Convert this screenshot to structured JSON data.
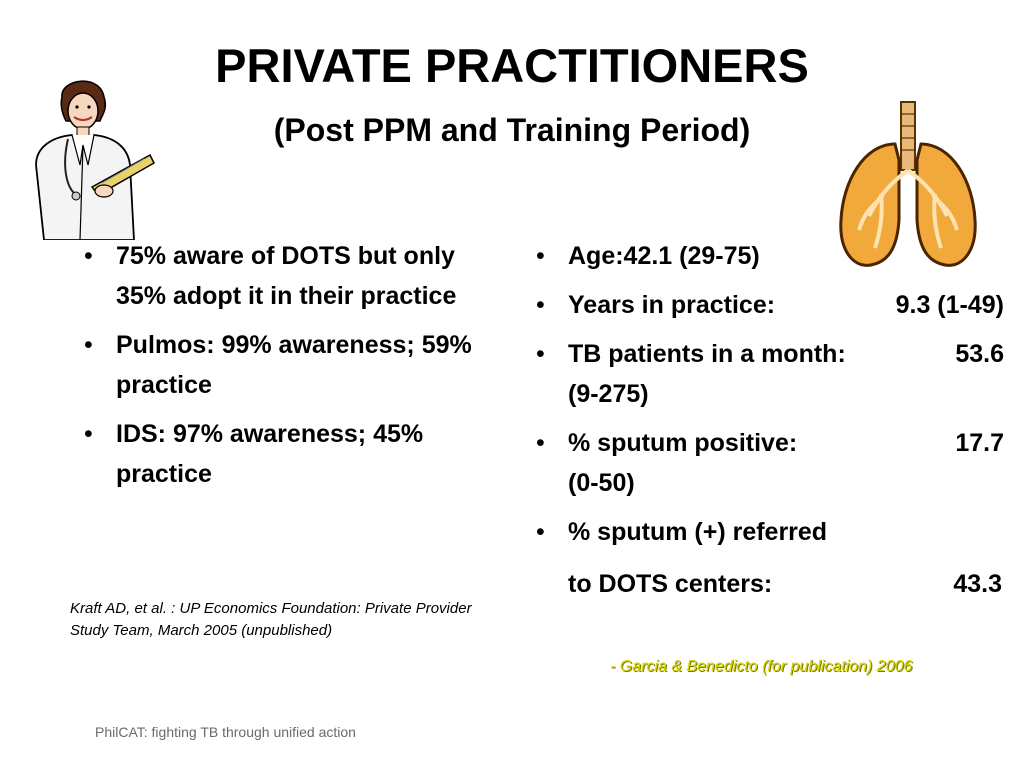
{
  "slide": {
    "title": "PRIVATE PRACTITIONERS",
    "subtitle": "(Post PPM and Training Period)",
    "left_bullets": [
      "75% aware of DOTS but only 35% adopt it in their practice",
      "Pulmos: 99% awareness; 59% practice",
      "IDS: 97% awareness; 45% practice"
    ],
    "right_bullets": [
      {
        "label": "Age:42.1 (29-75)",
        "value": "",
        "cont": ""
      },
      {
        "label": "Years in practice:",
        "value": "9.3 (1-49)",
        "cont": ""
      },
      {
        "label": "TB patients in a month:",
        "value": "53.6",
        "cont": "(9-275)"
      },
      {
        "label": "% sputum positive:",
        "value": "17.7",
        "cont": "(0-50)"
      },
      {
        "label": "% sputum (+) referred",
        "value": "",
        "cont": ""
      }
    ],
    "right_continuation": {
      "label": "to DOTS centers:",
      "value": "43.3"
    },
    "bullet_glyph": "•",
    "citation_left": "Kraft AD, et al. : UP Economics Foundation: Private Provider Study Team, March 2005 (unpublished)",
    "citation_right": "- Garcia & Benedicto (for publication) 2006",
    "footer": "PhilCAT: fighting TB through unified action",
    "clipart": [
      "doctor-icon",
      "lungs-icon"
    ],
    "colors": {
      "citation_right": "#d6d600",
      "footer": "#6a6a6a",
      "lungs": "#f2a93b"
    }
  }
}
